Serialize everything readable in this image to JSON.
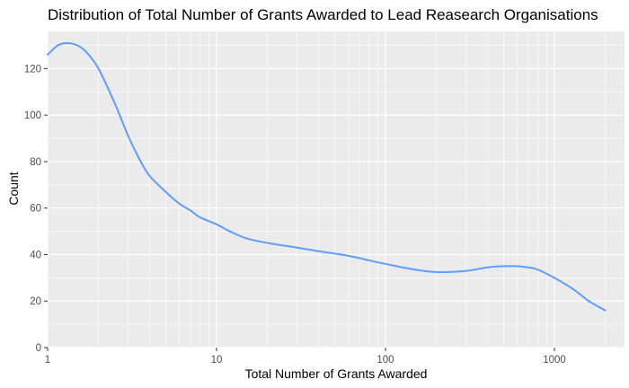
{
  "chart_data": {
    "type": "line",
    "title": "Distribution of Total Number of Grants Awarded to Lead Reasearch Organisations",
    "xlabel": "Total Number of Grants Awarded",
    "ylabel": "Count",
    "x_scale": "log10",
    "xlim": [
      1,
      2600
    ],
    "ylim": [
      0,
      136
    ],
    "x_ticks": [
      1,
      10,
      100,
      1000
    ],
    "x_tick_labels": [
      "1",
      "10",
      "100",
      "1000"
    ],
    "y_ticks": [
      0,
      20,
      40,
      60,
      80,
      100,
      120
    ],
    "y_tick_labels": [
      "0",
      "20",
      "40",
      "60",
      "80",
      "100",
      "120"
    ],
    "grid": true,
    "legend": "none",
    "colors": {
      "panel": "#ebebeb",
      "grid": "#ffffff",
      "line": "#619cff",
      "tick_label": "#4d4d4d"
    },
    "series": [
      {
        "x": [
          1,
          1.15,
          1.3,
          1.5,
          1.7,
          2,
          2.5,
          3,
          3.5,
          4,
          5,
          6,
          7,
          8,
          10,
          12,
          15,
          20,
          30,
          40,
          60,
          80,
          100,
          150,
          200,
          300,
          400,
          500,
          600,
          700,
          800,
          1000,
          1300,
          1600,
          2000
        ],
        "y": [
          126,
          130,
          131,
          130,
          127,
          120,
          105,
          91,
          81,
          74,
          67,
          62,
          59,
          56,
          53,
          50,
          47,
          45,
          43,
          41.5,
          39.5,
          37.5,
          36,
          33.5,
          32.5,
          33,
          34.5,
          35,
          35,
          34.5,
          33.5,
          30,
          25,
          20,
          16
        ]
      }
    ]
  }
}
